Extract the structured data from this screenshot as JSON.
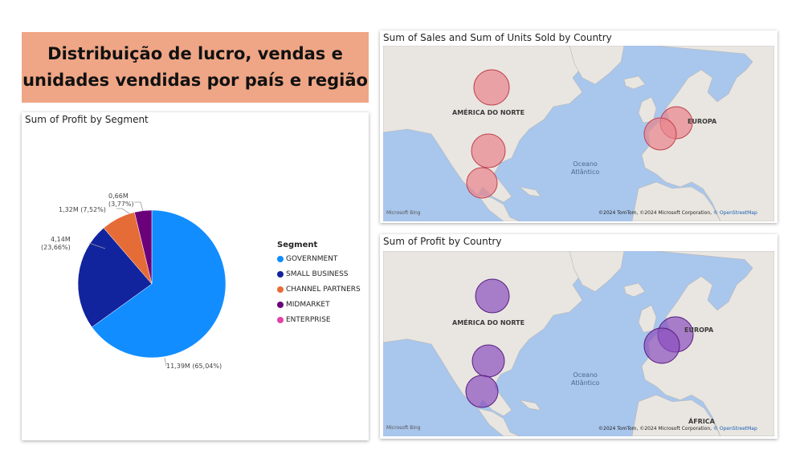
{
  "page_title": "Distribuição de lucro, vendas e\nunidades vendidas por país e região",
  "pie_card": {
    "title": "Sum of Profit by Segment",
    "legend_title": "Segment",
    "legend": [
      {
        "label": "GOVERNMENT",
        "color": "#118dff"
      },
      {
        "label": "SMALL BUSINESS",
        "color": "#12239e"
      },
      {
        "label": "CHANNEL PARTNERS",
        "color": "#e66c37"
      },
      {
        "label": "MIDMARKET",
        "color": "#6b007b"
      },
      {
        "label": "ENTERPRISE",
        "color": "#e044a7"
      }
    ],
    "labels": {
      "government": "11,39M (65,04%)",
      "small_business": "4,14M\n(23,66%)",
      "channel_partners": "1,32M (7,52%)",
      "midmarket": "0,66M\n(3,77%)"
    }
  },
  "chart_data": {
    "type": "pie",
    "title": "Sum of Profit by Segment",
    "categories": [
      "GOVERNMENT",
      "SMALL BUSINESS",
      "CHANNEL PARTNERS",
      "MIDMARKET",
      "ENTERPRISE"
    ],
    "values": [
      11.39,
      4.14,
      1.32,
      0.66,
      0
    ],
    "percent": [
      65.04,
      23.66,
      7.52,
      3.77,
      0
    ],
    "unit": "M",
    "legend_position": "right"
  },
  "map_sales": {
    "title": "Sum of Sales and Sum of Units Sold by Country",
    "labels": {
      "north_america": "AMÉRICA DO NORTE",
      "europe": "EUROPA",
      "ocean": "Oceano\nAtlântico"
    },
    "bubble_color": "#e8838c"
  },
  "map_profit": {
    "title": "Sum of Profit by Country",
    "labels": {
      "north_america": "AMÉRICA DO NORTE",
      "europe": "EUROPA",
      "ocean": "Oceano\nAtlântico",
      "africa": "ÁFRICA"
    },
    "bubble_color": "#8a4fbf"
  },
  "map_common": {
    "bing": "Microsoft Bing",
    "attribution": "©2024 TomTom, ©2024 Microsoft Corporation, ",
    "attribution_link": "© OpenStreetMap"
  }
}
